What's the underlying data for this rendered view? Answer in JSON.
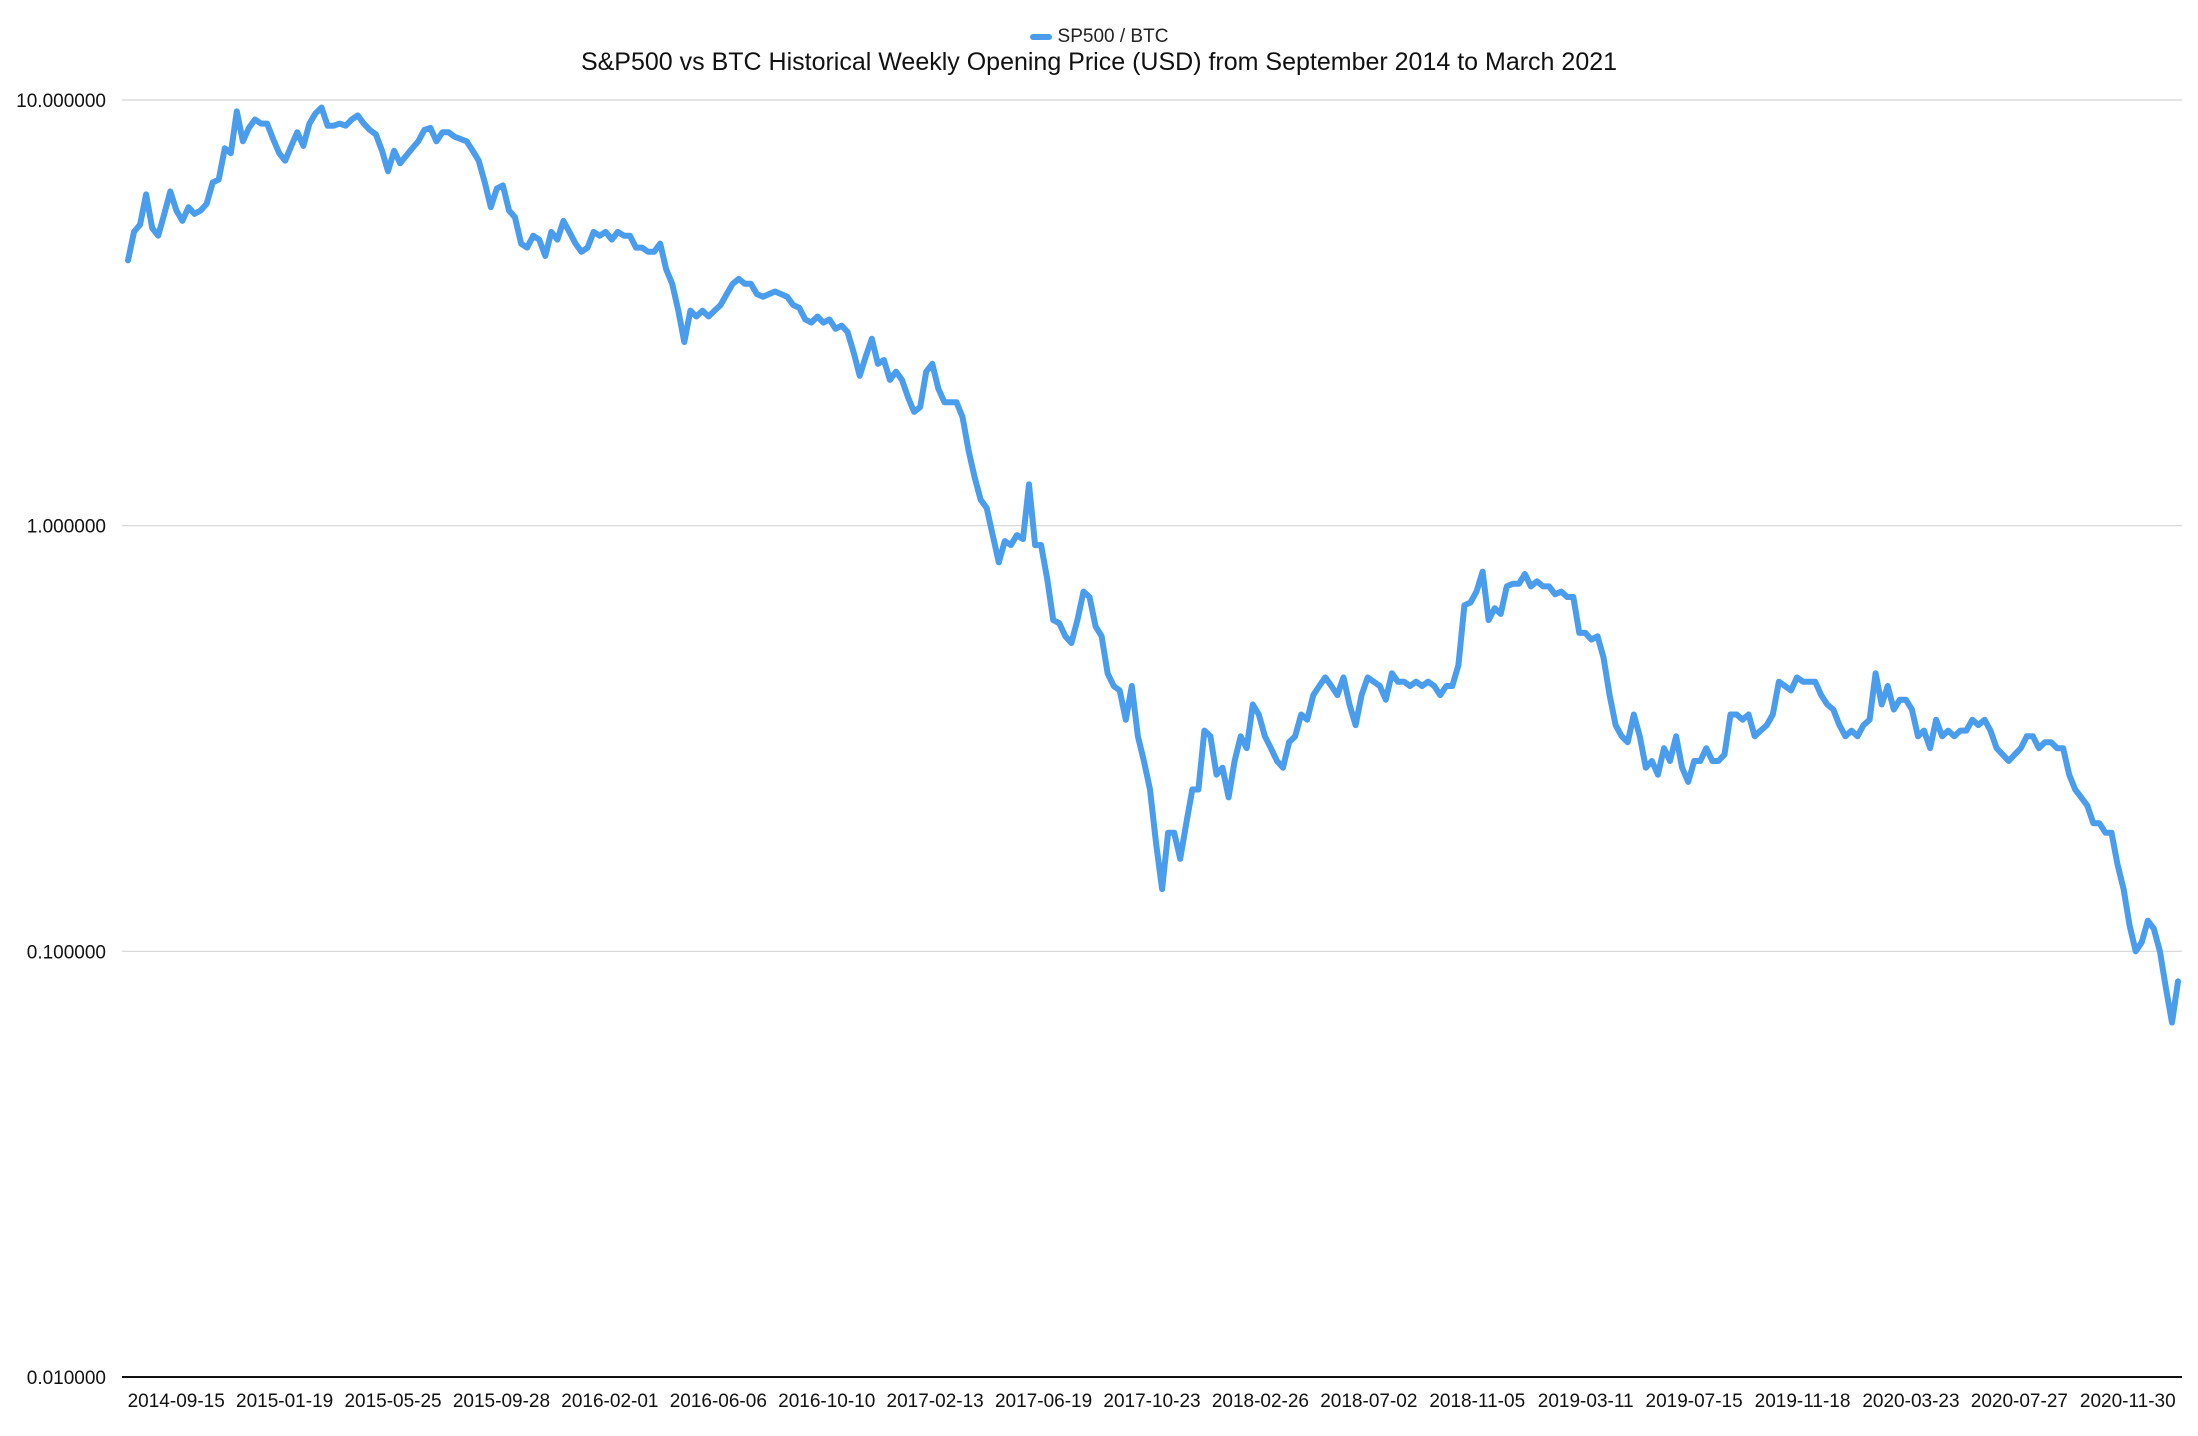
{
  "chart_data": {
    "type": "line",
    "title": "S&P500 vs BTC Historical Weekly Opening Price (USD) from September 2014 to March 2021",
    "xlabel": "",
    "ylabel": "",
    "y_scale": "log",
    "ylim": [
      0.01,
      10
    ],
    "y_ticks": [
      "10.000000",
      "1.000000",
      "0.100000",
      "0.010000"
    ],
    "y_tick_values": [
      10,
      1,
      0.1,
      0.01
    ],
    "x_tick_labels": [
      "2014-09-15",
      "2015-01-19",
      "2015-05-25",
      "2015-09-28",
      "2016-02-01",
      "2016-06-06",
      "2016-10-10",
      "2017-02-13",
      "2017-06-19",
      "2017-10-23",
      "2018-02-26",
      "2018-07-02",
      "2018-11-05",
      "2019-03-11",
      "2019-07-15",
      "2019-11-18",
      "2020-03-23",
      "2020-07-27",
      "2020-11-30"
    ],
    "grid": true,
    "legend_position": "top",
    "color": "#4a9ded",
    "series": [
      {
        "name": "SP500 / BTC",
        "values": [
          4.2,
          4.9,
          5.1,
          6.0,
          5.0,
          4.8,
          5.4,
          6.1,
          5.5,
          5.2,
          5.6,
          5.4,
          5.5,
          5.7,
          6.4,
          6.5,
          7.7,
          7.5,
          9.4,
          8.0,
          8.6,
          9.0,
          8.8,
          8.8,
          8.1,
          7.5,
          7.2,
          7.8,
          8.4,
          7.8,
          8.8,
          9.3,
          9.6,
          8.7,
          8.7,
          8.8,
          8.7,
          9.0,
          9.2,
          8.8,
          8.5,
          8.3,
          7.6,
          6.8,
          7.6,
          7.1,
          7.4,
          7.7,
          8.0,
          8.5,
          8.6,
          8.0,
          8.4,
          8.4,
          8.2,
          8.1,
          8.0,
          7.6,
          7.2,
          6.4,
          5.6,
          6.2,
          6.3,
          5.5,
          5.3,
          4.6,
          4.5,
          4.8,
          4.7,
          4.3,
          4.9,
          4.7,
          5.2,
          4.9,
          4.6,
          4.4,
          4.5,
          4.9,
          4.8,
          4.9,
          4.7,
          4.9,
          4.8,
          4.8,
          4.5,
          4.5,
          4.4,
          4.4,
          4.6,
          4.0,
          3.7,
          3.2,
          2.7,
          3.2,
          3.1,
          3.2,
          3.1,
          3.2,
          3.3,
          3.5,
          3.7,
          3.8,
          3.7,
          3.7,
          3.5,
          3.45,
          3.5,
          3.55,
          3.5,
          3.45,
          3.3,
          3.25,
          3.05,
          3.0,
          3.1,
          3.0,
          3.05,
          2.9,
          2.95,
          2.85,
          2.55,
          2.25,
          2.5,
          2.75,
          2.4,
          2.45,
          2.2,
          2.3,
          2.2,
          2.0,
          1.85,
          1.9,
          2.3,
          2.4,
          2.1,
          1.95,
          1.95,
          1.95,
          1.8,
          1.5,
          1.3,
          1.15,
          1.1,
          0.95,
          0.82,
          0.92,
          0.9,
          0.95,
          0.93,
          1.25,
          0.9,
          0.9,
          0.75,
          0.6,
          0.59,
          0.55,
          0.53,
          0.6,
          0.7,
          0.68,
          0.58,
          0.55,
          0.45,
          0.42,
          0.41,
          0.35,
          0.42,
          0.32,
          0.28,
          0.24,
          0.18,
          0.14,
          0.19,
          0.19,
          0.165,
          0.2,
          0.24,
          0.24,
          0.33,
          0.32,
          0.26,
          0.27,
          0.23,
          0.28,
          0.32,
          0.3,
          0.38,
          0.36,
          0.32,
          0.3,
          0.28,
          0.27,
          0.31,
          0.32,
          0.36,
          0.35,
          0.4,
          0.42,
          0.44,
          0.42,
          0.4,
          0.44,
          0.38,
          0.34,
          0.4,
          0.44,
          0.43,
          0.42,
          0.39,
          0.45,
          0.43,
          0.43,
          0.42,
          0.43,
          0.42,
          0.43,
          0.42,
          0.4,
          0.42,
          0.42,
          0.47,
          0.65,
          0.66,
          0.7,
          0.78,
          0.6,
          0.64,
          0.62,
          0.72,
          0.73,
          0.73,
          0.77,
          0.72,
          0.74,
          0.72,
          0.72,
          0.69,
          0.7,
          0.68,
          0.68,
          0.56,
          0.56,
          0.54,
          0.55,
          0.49,
          0.4,
          0.34,
          0.32,
          0.31,
          0.36,
          0.32,
          0.27,
          0.28,
          0.26,
          0.3,
          0.28,
          0.32,
          0.27,
          0.25,
          0.28,
          0.28,
          0.3,
          0.28,
          0.28,
          0.29,
          0.36,
          0.36,
          0.35,
          0.36,
          0.32,
          0.33,
          0.34,
          0.36,
          0.43,
          0.42,
          0.41,
          0.44,
          0.43,
          0.43,
          0.43,
          0.4,
          0.38,
          0.37,
          0.34,
          0.32,
          0.33,
          0.32,
          0.34,
          0.35,
          0.45,
          0.38,
          0.42,
          0.37,
          0.39,
          0.39,
          0.37,
          0.32,
          0.33,
          0.3,
          0.35,
          0.32,
          0.33,
          0.32,
          0.33,
          0.33,
          0.35,
          0.34,
          0.35,
          0.33,
          0.3,
          0.29,
          0.28,
          0.29,
          0.3,
          0.32,
          0.32,
          0.3,
          0.31,
          0.31,
          0.3,
          0.3,
          0.26,
          0.24,
          0.23,
          0.22,
          0.2,
          0.2,
          0.19,
          0.19,
          0.16,
          0.14,
          0.115,
          0.1,
          0.105,
          0.118,
          0.113,
          0.1,
          0.082,
          0.068,
          0.085
        ]
      }
    ]
  },
  "legend": {
    "label": "SP500 / BTC"
  }
}
